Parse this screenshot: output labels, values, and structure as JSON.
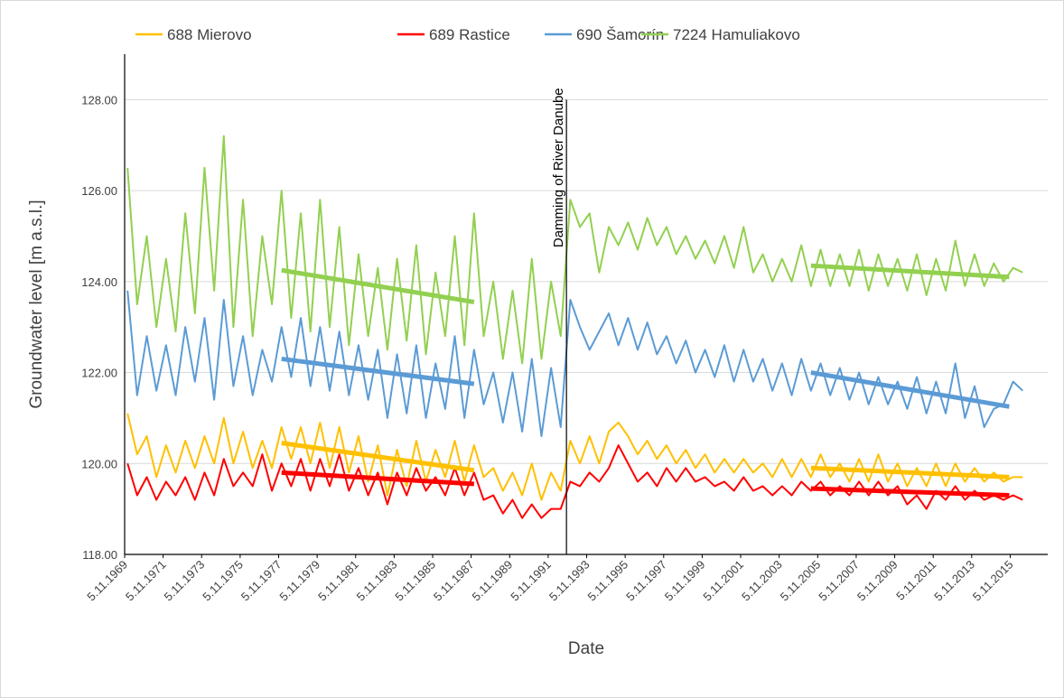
{
  "chart_data": {
    "type": "line",
    "x_label": "Date",
    "y_label": "Groundwater level  [m a.s.l.]",
    "xlim": [
      1969.85,
      2017.8
    ],
    "ylim": [
      118,
      129
    ],
    "yticks": [
      {
        "value": 118,
        "label": "118.00"
      },
      {
        "value": 120,
        "label": "120.00"
      },
      {
        "value": 122,
        "label": "122.00"
      },
      {
        "value": 124,
        "label": "124.00"
      },
      {
        "value": 126,
        "label": "126.00"
      },
      {
        "value": 128,
        "label": "128.00"
      }
    ],
    "xticks": [
      {
        "value": 1969.85,
        "label": "5.11.1969"
      },
      {
        "value": 1971.85,
        "label": "5.11.1971"
      },
      {
        "value": 1973.85,
        "label": "5.11.1973"
      },
      {
        "value": 1975.85,
        "label": "5.11.1975"
      },
      {
        "value": 1977.85,
        "label": "5.11.1977"
      },
      {
        "value": 1979.85,
        "label": "5.11.1979"
      },
      {
        "value": 1981.85,
        "label": "5.11.1981"
      },
      {
        "value": 1983.85,
        "label": "5.11.1983"
      },
      {
        "value": 1985.85,
        "label": "5.11.1985"
      },
      {
        "value": 1987.85,
        "label": "5.11.1987"
      },
      {
        "value": 1989.85,
        "label": "5.11.1989"
      },
      {
        "value": 1991.85,
        "label": "5.11.1991"
      },
      {
        "value": 1993.85,
        "label": "5.11.1993"
      },
      {
        "value": 1995.85,
        "label": "5.11.1995"
      },
      {
        "value": 1997.85,
        "label": "5.11.1997"
      },
      {
        "value": 1999.85,
        "label": "5.11.1999"
      },
      {
        "value": 2001.85,
        "label": "5.11.2001"
      },
      {
        "value": 2003.85,
        "label": "5.11.2003"
      },
      {
        "value": 2005.85,
        "label": "5.11.2005"
      },
      {
        "value": 2007.85,
        "label": "5.11.2007"
      },
      {
        "value": 2009.85,
        "label": "5.11.2009"
      },
      {
        "value": 2011.85,
        "label": "5.11.2011"
      },
      {
        "value": 2013.85,
        "label": "5.11.2013"
      },
      {
        "value": 2015.85,
        "label": "5.11.2015"
      }
    ],
    "grid": true,
    "legend": "top",
    "x": [
      1970,
      1970.5,
      1971,
      1971.5,
      1972,
      1972.5,
      1973,
      1973.5,
      1974,
      1974.5,
      1975,
      1975.5,
      1976,
      1976.5,
      1977,
      1977.5,
      1978,
      1978.5,
      1979,
      1979.5,
      1980,
      1980.5,
      1981,
      1981.5,
      1982,
      1982.5,
      1983,
      1983.5,
      1984,
      1984.5,
      1985,
      1985.5,
      1986,
      1986.5,
      1987,
      1987.5,
      1988,
      1988.5,
      1989,
      1989.5,
      1990,
      1990.5,
      1991,
      1991.5,
      1992,
      1992.5,
      1993,
      1993.5,
      1994,
      1994.5,
      1995,
      1995.5,
      1996,
      1996.5,
      1997,
      1997.5,
      1998,
      1998.5,
      1999,
      1999.5,
      2000,
      2000.5,
      2001,
      2001.5,
      2002,
      2002.5,
      2003,
      2003.5,
      2004,
      2004.5,
      2005,
      2005.5,
      2006,
      2006.5,
      2007,
      2007.5,
      2008,
      2008.5,
      2009,
      2009.5,
      2010,
      2010.5,
      2011,
      2011.5,
      2012,
      2012.5,
      2013,
      2013.5,
      2014,
      2014.5,
      2015,
      2015.5,
      2016,
      2016.5
    ],
    "series": [
      {
        "name": "688 Mierovo",
        "color": "#ffc000",
        "values": [
          121.1,
          120.2,
          120.6,
          119.7,
          120.4,
          119.8,
          120.5,
          119.9,
          120.6,
          120.0,
          121.0,
          120.0,
          120.7,
          119.9,
          120.5,
          119.9,
          120.8,
          120.1,
          120.8,
          120.0,
          120.9,
          119.9,
          120.8,
          119.8,
          120.6,
          119.6,
          120.4,
          119.3,
          120.3,
          119.5,
          120.5,
          119.6,
          120.3,
          119.7,
          120.5,
          119.6,
          120.4,
          119.7,
          119.9,
          119.4,
          119.8,
          119.3,
          120.0,
          119.2,
          119.8,
          119.4,
          120.5,
          120.0,
          120.6,
          120.0,
          120.7,
          120.9,
          120.6,
          120.2,
          120.5,
          120.1,
          120.4,
          120.0,
          120.3,
          119.9,
          120.2,
          119.8,
          120.1,
          119.8,
          120.1,
          119.8,
          120.0,
          119.7,
          120.1,
          119.7,
          120.1,
          119.7,
          120.2,
          119.7,
          120.0,
          119.6,
          120.1,
          119.6,
          120.2,
          119.6,
          120.0,
          119.5,
          119.9,
          119.5,
          120.0,
          119.5,
          120.0,
          119.6,
          119.9,
          119.6,
          119.8,
          119.6,
          119.7,
          119.7
        ]
      },
      {
        "name": "689 Rastice",
        "color": "#ff0000",
        "values": [
          120.0,
          119.3,
          119.7,
          119.2,
          119.6,
          119.3,
          119.7,
          119.2,
          119.8,
          119.3,
          120.1,
          119.5,
          119.8,
          119.5,
          120.2,
          119.4,
          120.0,
          119.5,
          120.1,
          119.4,
          120.1,
          119.5,
          120.2,
          119.4,
          119.9,
          119.3,
          119.8,
          119.1,
          119.8,
          119.3,
          119.9,
          119.4,
          119.7,
          119.3,
          119.9,
          119.3,
          119.8,
          119.2,
          119.3,
          118.9,
          119.2,
          118.8,
          119.1,
          118.8,
          119.0,
          119.0,
          119.6,
          119.5,
          119.8,
          119.6,
          119.9,
          120.4,
          120.0,
          119.6,
          119.8,
          119.5,
          119.9,
          119.6,
          119.9,
          119.6,
          119.7,
          119.5,
          119.6,
          119.4,
          119.7,
          119.4,
          119.5,
          119.3,
          119.5,
          119.3,
          119.6,
          119.4,
          119.6,
          119.3,
          119.5,
          119.3,
          119.6,
          119.3,
          119.6,
          119.3,
          119.5,
          119.1,
          119.3,
          119.0,
          119.4,
          119.2,
          119.5,
          119.2,
          119.4,
          119.2,
          119.3,
          119.2,
          119.3,
          119.2
        ]
      },
      {
        "name": "690 Šamorín",
        "color": "#5b9bd5",
        "values": [
          123.8,
          121.5,
          122.8,
          121.6,
          122.6,
          121.5,
          123.0,
          121.8,
          123.2,
          121.4,
          123.6,
          121.7,
          122.8,
          121.5,
          122.5,
          121.8,
          123.0,
          121.9,
          123.2,
          121.7,
          123.0,
          121.6,
          122.9,
          121.5,
          122.6,
          121.4,
          122.5,
          121.0,
          122.4,
          121.1,
          122.6,
          121.0,
          122.2,
          121.2,
          122.8,
          121.0,
          122.5,
          121.3,
          122.0,
          120.9,
          122.0,
          120.7,
          122.3,
          120.6,
          122.1,
          120.8,
          123.6,
          123.0,
          122.5,
          122.9,
          123.3,
          122.6,
          123.2,
          122.5,
          123.1,
          122.4,
          122.8,
          122.2,
          122.7,
          122.0,
          122.5,
          121.9,
          122.6,
          121.8,
          122.5,
          121.8,
          122.3,
          121.6,
          122.2,
          121.5,
          122.3,
          121.6,
          122.2,
          121.5,
          122.1,
          121.4,
          122.0,
          121.3,
          121.9,
          121.3,
          121.8,
          121.2,
          121.9,
          121.1,
          121.8,
          121.1,
          122.2,
          121.0,
          121.7,
          120.8,
          121.2,
          121.3,
          121.8,
          121.6
        ]
      },
      {
        "name": "7224 Hamuliakovo",
        "color": "#92d050",
        "values": [
          126.5,
          123.5,
          125.0,
          123.0,
          124.5,
          122.9,
          125.5,
          123.3,
          126.5,
          123.8,
          127.2,
          123.0,
          125.8,
          122.8,
          125.0,
          123.5,
          126.0,
          123.2,
          125.5,
          122.9,
          125.8,
          123.0,
          125.2,
          122.6,
          124.6,
          122.8,
          124.3,
          122.5,
          124.5,
          122.7,
          124.8,
          122.4,
          124.2,
          122.8,
          125.0,
          122.6,
          125.5,
          122.8,
          124.0,
          122.3,
          123.8,
          122.2,
          124.5,
          122.3,
          124.0,
          122.8,
          125.8,
          125.2,
          125.5,
          124.2,
          125.2,
          124.8,
          125.3,
          124.7,
          125.4,
          124.8,
          125.2,
          124.6,
          125.0,
          124.5,
          124.9,
          124.4,
          125.0,
          124.3,
          125.2,
          124.2,
          124.6,
          124.0,
          124.5,
          124.0,
          124.8,
          123.9,
          124.7,
          123.9,
          124.6,
          123.9,
          124.7,
          123.8,
          124.6,
          123.9,
          124.5,
          123.8,
          124.6,
          123.7,
          124.5,
          123.8,
          124.9,
          123.9,
          124.6,
          123.9,
          124.4,
          124.0,
          124.3,
          124.2
        ]
      }
    ],
    "trend_lines": [
      {
        "series": 0,
        "x": [
          1978,
          1988
        ],
        "values": [
          120.45,
          119.85
        ]
      },
      {
        "series": 0,
        "x": [
          2005.5,
          2015.8
        ],
        "values": [
          119.9,
          119.7
        ]
      },
      {
        "series": 1,
        "x": [
          1978,
          1988
        ],
        "values": [
          119.8,
          119.55
        ]
      },
      {
        "series": 1,
        "x": [
          2005.5,
          2015.8
        ],
        "values": [
          119.45,
          119.3
        ]
      },
      {
        "series": 2,
        "x": [
          1978,
          1988
        ],
        "values": [
          122.3,
          121.75
        ]
      },
      {
        "series": 2,
        "x": [
          2005.5,
          2015.8
        ],
        "values": [
          122.0,
          121.25
        ]
      },
      {
        "series": 3,
        "x": [
          1978,
          1988
        ],
        "values": [
          124.25,
          123.55
        ]
      },
      {
        "series": 3,
        "x": [
          2005.5,
          2015.8
        ],
        "values": [
          124.35,
          124.1
        ]
      }
    ],
    "annotations": [
      {
        "text": "Damming of River Danube",
        "x": 1992.8
      }
    ]
  }
}
